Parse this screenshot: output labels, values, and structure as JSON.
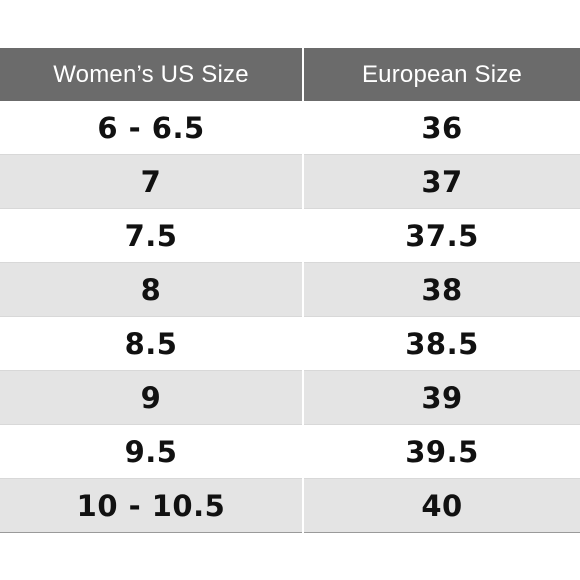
{
  "colors": {
    "header_background": "#6b6b6b",
    "header_text": "#ffffff",
    "row_shaded": "#e4e4e4",
    "row_plain": "#ffffff",
    "cell_text": "#111111"
  },
  "table": {
    "headers": [
      "Women’s US Size",
      "European Size"
    ],
    "rows": [
      {
        "us": "6 - 6.5",
        "eu": "36"
      },
      {
        "us": "7",
        "eu": "37"
      },
      {
        "us": "7.5",
        "eu": "37.5"
      },
      {
        "us": "8",
        "eu": "38"
      },
      {
        "us": "8.5",
        "eu": "38.5"
      },
      {
        "us": "9",
        "eu": "39"
      },
      {
        "us": "9.5",
        "eu": "39.5"
      },
      {
        "us": "10 - 10.5",
        "eu": "40"
      }
    ]
  }
}
